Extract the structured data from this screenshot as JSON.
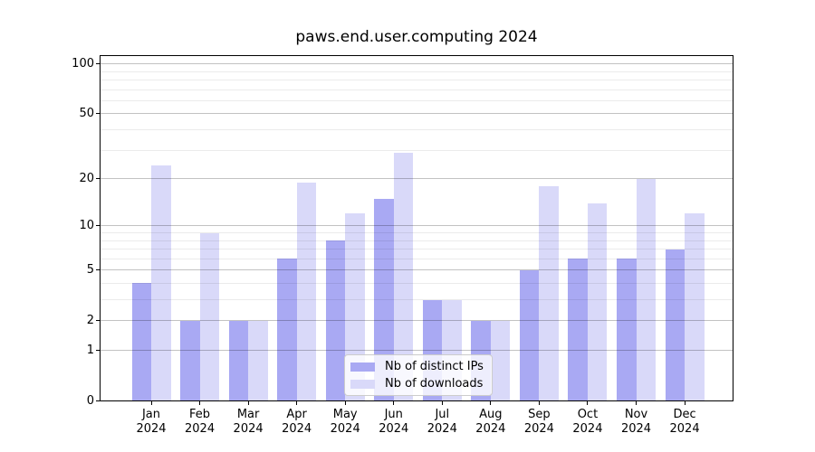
{
  "chart_data": {
    "type": "bar",
    "title": "paws.end.user.computing 2024",
    "categories": [
      "Jan 2024",
      "Feb 2024",
      "Mar 2024",
      "Apr 2024",
      "May 2024",
      "Jun 2024",
      "Jul 2024",
      "Aug 2024",
      "Sep 2024",
      "Oct 2024",
      "Nov 2024",
      "Dec 2024"
    ],
    "series": [
      {
        "name": "Nb of distinct IPs",
        "color": "#a9a9f3",
        "values": [
          4,
          2,
          2,
          6,
          8,
          15,
          3,
          2,
          5,
          6,
          6,
          7
        ]
      },
      {
        "name": "Nb of downloads",
        "color": "#d9d9f9",
        "values": [
          24,
          9,
          2,
          19,
          12,
          29,
          3,
          2,
          18,
          14,
          20,
          12
        ]
      }
    ],
    "y_scale": "log(1+y)",
    "y_ticks": [
      0,
      1,
      2,
      5,
      10,
      20,
      50,
      100
    ],
    "y_minor_gridlines": [
      3,
      4,
      6,
      7,
      8,
      9,
      30,
      40,
      60,
      70,
      80,
      90
    ],
    "ylim": [
      0,
      112
    ],
    "xlabel": "",
    "ylabel": "",
    "grid": "both",
    "legend_position": "lower center"
  },
  "colors": {
    "background": "#ffffff",
    "axis": "#000000",
    "text": "#000000",
    "grid_major": "rgba(0,0,0,0.24)",
    "grid_minor": "rgba(0,0,0,0.08)",
    "legend_background": "rgba(255,255,255,0.8)",
    "legend_border": "#cccccc"
  }
}
